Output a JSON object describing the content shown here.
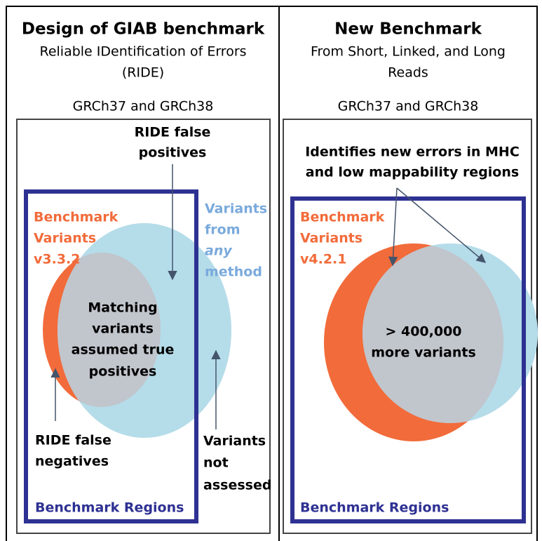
{
  "left": {
    "title": "Design of GIAB benchmark",
    "subtitle_lines": [
      "Reliable IDentification of Errors",
      "(RIDE)"
    ],
    "reference": "GRCh37 and GRCh38",
    "false_positives_lines": [
      "RIDE false",
      "positives"
    ],
    "benchmark_lines": [
      "Benchmark",
      "Variants",
      "v3.3.2"
    ],
    "any_method_lines": [
      "Variants",
      "from",
      "any",
      "method"
    ],
    "matching_lines": [
      "Matching",
      "variants",
      "assumed true",
      "positives"
    ],
    "false_negatives_lines": [
      "RIDE false",
      "negatives"
    ],
    "not_assessed_lines": [
      "Variants",
      "not",
      "assessed"
    ],
    "regions": "Benchmark Regions"
  },
  "right": {
    "title": "New Benchmark",
    "subtitle_lines": [
      "From Short, Linked, and Long",
      "Reads"
    ],
    "reference": "GRCh37 and GRCh38",
    "new_errors_lines": [
      "Identifies new errors in MHC",
      "and low mappability regions"
    ],
    "benchmark_lines": [
      "Benchmark",
      "Variants",
      "v4.2.1"
    ],
    "more_lines": [
      "> 400,000",
      "more variants"
    ],
    "regions": "Benchmark Regions"
  }
}
